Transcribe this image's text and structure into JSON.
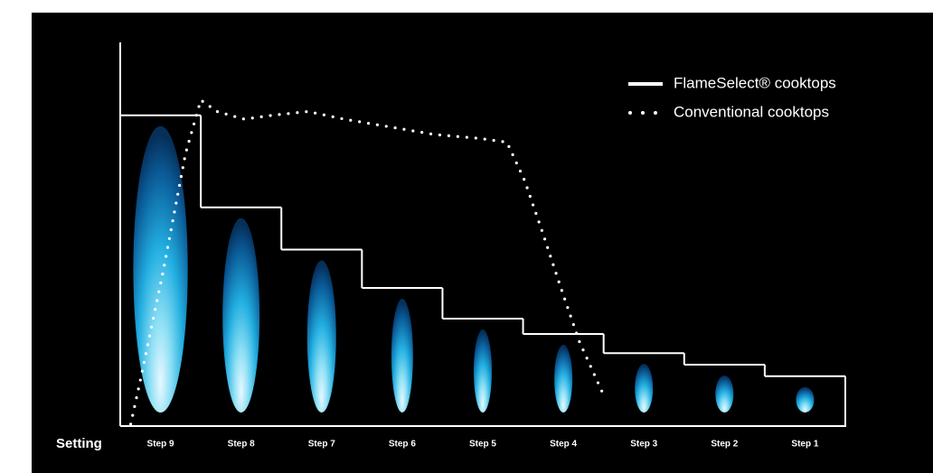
{
  "chart_data": {
    "type": "step-line",
    "x_label": "Setting",
    "categories": [
      "Step 9",
      "Step 8",
      "Step 7",
      "Step 6",
      "Step 5",
      "Step 4",
      "Step 3",
      "Step 2",
      "Step 1"
    ],
    "xlim": [
      0,
      9
    ],
    "ylim": [
      0,
      100
    ],
    "legend": "top-right",
    "series": [
      {
        "name": "FlameSelect® cooktops",
        "color": "#ffffff",
        "style": "solid",
        "values": [
          81,
          57,
          46,
          36,
          28,
          24,
          19,
          16,
          13
        ]
      },
      {
        "name": "Conventional cooktops",
        "color": "#ffffff",
        "style": "dotted",
        "x": [
          0.13,
          0.25,
          0.53,
          0.81,
          1.0,
          1.2,
          1.54,
          1.88,
          2.33,
          2.78,
          3.34,
          3.9,
          4.46,
          4.8,
          5.02,
          5.25,
          5.47,
          5.7,
          5.98
        ],
        "values": [
          0.5,
          12,
          40,
          71,
          85,
          82,
          80,
          81,
          82,
          80,
          78,
          76,
          75,
          74,
          64,
          50,
          36,
          22,
          9
        ]
      }
    ]
  }
}
